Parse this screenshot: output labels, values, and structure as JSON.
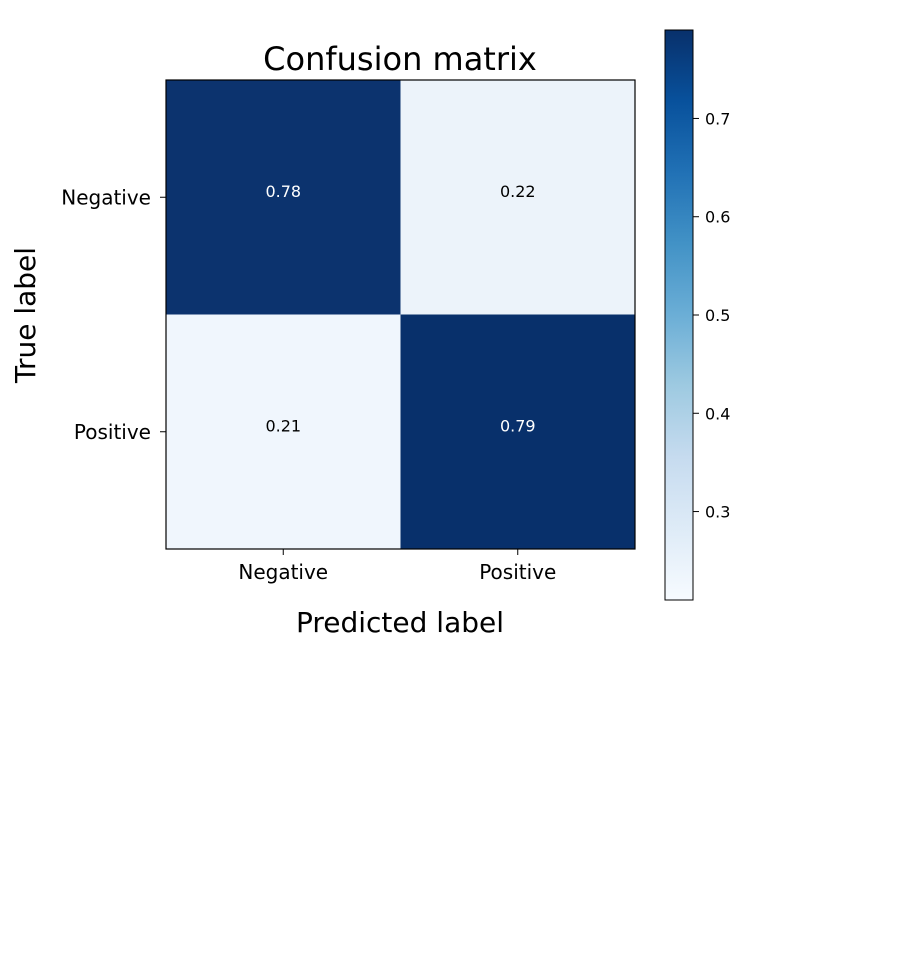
{
  "chart_data": {
    "type": "heatmap",
    "title": "Confusion matrix",
    "xlabel": "Predicted label",
    "ylabel": "True label",
    "x_categories": [
      "Negative",
      "Positive"
    ],
    "y_categories": [
      "Negative",
      "Positive"
    ],
    "values": [
      [
        0.78,
        0.22
      ],
      [
        0.21,
        0.79
      ]
    ],
    "value_labels": [
      [
        "0.78",
        "0.22"
      ],
      [
        "0.21",
        "0.79"
      ]
    ],
    "colormap": "Blues",
    "colorbar": {
      "range": [
        0.21,
        0.79
      ],
      "ticks": [
        0.3,
        0.4,
        0.5,
        0.6,
        0.7
      ],
      "tick_labels": [
        "0.3",
        "0.4",
        "0.5",
        "0.6",
        "0.7"
      ]
    },
    "colors": {
      "low": "#f0f6fd",
      "high": "#08306b",
      "text_on_dark": "#ffffff",
      "text_on_light": "#000000"
    }
  }
}
